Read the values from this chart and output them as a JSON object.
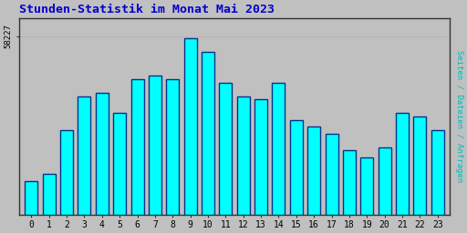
{
  "title": "Stunden-Statistik im Monat Mai 2023",
  "ylabel": "Seiten / Dateien / Anfragen",
  "xlabel_ticks": [
    0,
    1,
    2,
    3,
    4,
    5,
    6,
    7,
    8,
    9,
    10,
    11,
    12,
    13,
    14,
    15,
    16,
    17,
    18,
    19,
    20,
    21,
    22,
    23
  ],
  "ytick_label": "58227",
  "values": [
    57800,
    57820,
    57950,
    58050,
    58060,
    58000,
    58100,
    58110,
    58100,
    58220,
    58180,
    58090,
    58050,
    58040,
    58090,
    57980,
    57960,
    57940,
    57890,
    57870,
    57900,
    58000,
    57990,
    57950
  ],
  "bar_color": "#00FFFF",
  "bar_edge_color": "#003388",
  "background_color": "#C0C0C0",
  "plot_bg_color": "#C0C0C0",
  "title_color": "#0000CC",
  "ylabel_color": "#00BBBB",
  "tick_color": "#000000",
  "ymin": 57700,
  "ymax": 58280,
  "ytick_val": 58227,
  "figwidth": 5.12,
  "figheight": 2.56,
  "dpi": 100
}
